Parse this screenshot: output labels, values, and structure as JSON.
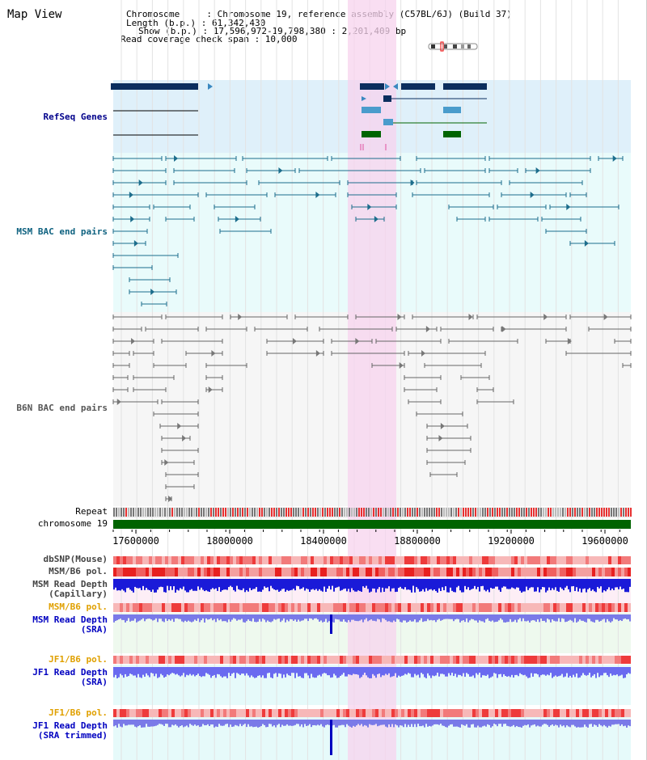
{
  "view_title": "Map View",
  "info": {
    "line1": "Chromosome     : Chromosome 19, reference assembly (C57BL/6J) (Build 37)",
    "line2": "Length (b.p.) : 61,342,430",
    "line3": "Show (b.p.) : 17,596,972-19,798,380 : 2,201,409 bp",
    "line4": "Read coverage check span : 10,000"
  },
  "tracks": {
    "refseq": "RefSeq Genes",
    "msm_bac": "MSM BAC end pairs",
    "b6n_bac": "B6N BAC end pairs",
    "repeat": "Repeat",
    "chromosome": "chromosome 19",
    "dbsnp": "dbSNP(Mouse)",
    "msm_b6_pol_1": "MSM/B6 pol.",
    "msm_depth_cap_1": "MSM Read Depth",
    "msm_depth_cap_2": "(Capillary)",
    "msm_b6_pol_2": "MSM/B6 pol.",
    "msm_depth_sra_1": "MSM Read Depth",
    "msm_depth_sra_2": "(SRA)",
    "jf1_b6_pol_1": "JF1/B6 pol.",
    "jf1_depth_sra_1": "JF1 Read Depth",
    "jf1_depth_sra_2": "(SRA)",
    "jf1_b6_pol_2": "JF1/B6 pol.",
    "jf1_depth_trim_1": "JF1 Read Depth",
    "jf1_depth_trim_2": "(SRA trimmed)"
  },
  "axis": {
    "ticks": [
      "17600000",
      "18000000",
      "18400000",
      "18800000",
      "19200000",
      "19600000"
    ]
  },
  "colors": {
    "refseq_bg": "#dff0fa",
    "bac_bg": "#e9fbfb",
    "highlight": "#f7d3ee",
    "refseq_label": "#00008b",
    "msm_label": "#0f6280",
    "b6n_label": "#555555",
    "pol_label": "#e0a000",
    "depth_label": "#0000c0",
    "chromosome_bar": "#006400"
  }
}
